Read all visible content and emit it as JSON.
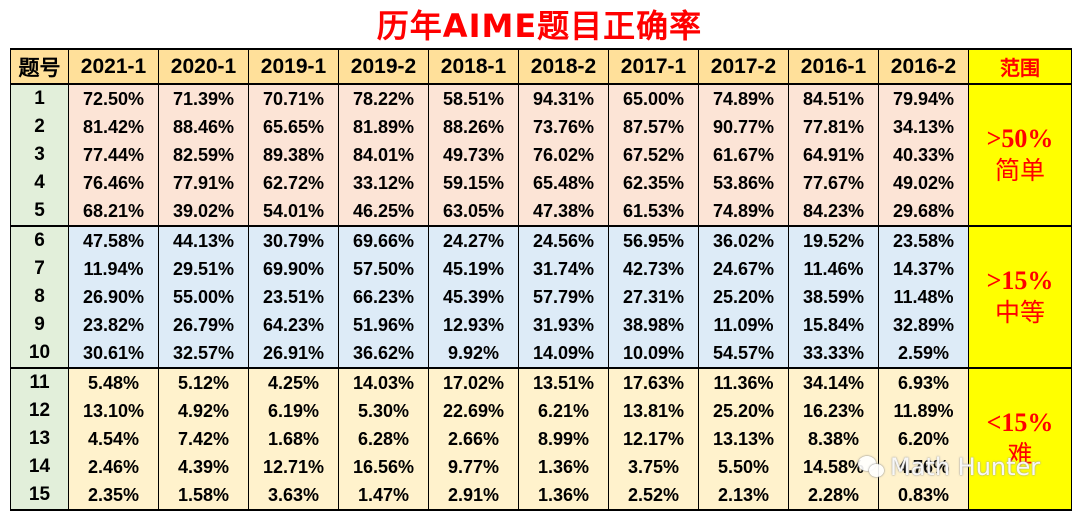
{
  "title": "历年AIME题目正确率",
  "table": {
    "headers": [
      "题号",
      "2021-1",
      "2020-1",
      "2019-1",
      "2019-2",
      "2018-1",
      "2018-2",
      "2017-1",
      "2017-2",
      "2016-1",
      "2016-2",
      "范围"
    ],
    "rows": [
      {
        "q": "1",
        "values": [
          "72.50%",
          "71.39%",
          "70.71%",
          "78.22%",
          "58.51%",
          "94.31%",
          "65.00%",
          "74.89%",
          "84.51%",
          "79.94%"
        ]
      },
      {
        "q": "2",
        "values": [
          "81.42%",
          "88.46%",
          "65.65%",
          "81.89%",
          "88.26%",
          "73.76%",
          "87.57%",
          "90.77%",
          "77.81%",
          "34.13%"
        ]
      },
      {
        "q": "3",
        "values": [
          "77.44%",
          "82.59%",
          "89.38%",
          "84.01%",
          "49.73%",
          "76.02%",
          "67.52%",
          "61.67%",
          "64.91%",
          "40.33%"
        ]
      },
      {
        "q": "4",
        "values": [
          "76.46%",
          "77.91%",
          "62.72%",
          "33.12%",
          "59.15%",
          "65.48%",
          "62.35%",
          "53.86%",
          "77.67%",
          "49.02%"
        ]
      },
      {
        "q": "5",
        "values": [
          "68.21%",
          "39.02%",
          "54.01%",
          "46.25%",
          "63.05%",
          "47.38%",
          "61.53%",
          "74.89%",
          "84.23%",
          "29.68%"
        ]
      },
      {
        "q": "6",
        "values": [
          "47.58%",
          "44.13%",
          "30.79%",
          "69.66%",
          "24.27%",
          "24.56%",
          "56.95%",
          "36.02%",
          "19.52%",
          "23.58%"
        ]
      },
      {
        "q": "7",
        "values": [
          "11.94%",
          "29.51%",
          "69.90%",
          "57.50%",
          "45.19%",
          "31.74%",
          "42.73%",
          "24.67%",
          "11.46%",
          "14.37%"
        ]
      },
      {
        "q": "8",
        "values": [
          "26.90%",
          "55.00%",
          "23.51%",
          "66.23%",
          "45.39%",
          "57.79%",
          "27.31%",
          "25.20%",
          "38.59%",
          "11.48%"
        ]
      },
      {
        "q": "9",
        "values": [
          "23.82%",
          "26.79%",
          "64.23%",
          "51.96%",
          "12.93%",
          "31.93%",
          "38.98%",
          "11.09%",
          "15.84%",
          "32.89%"
        ]
      },
      {
        "q": "10",
        "values": [
          "30.61%",
          "32.57%",
          "26.91%",
          "36.62%",
          "9.92%",
          "14.09%",
          "10.09%",
          "54.57%",
          "33.33%",
          "2.59%"
        ]
      },
      {
        "q": "11",
        "values": [
          "5.48%",
          "5.12%",
          "4.25%",
          "14.03%",
          "17.02%",
          "13.51%",
          "17.63%",
          "11.36%",
          "34.14%",
          "6.93%"
        ]
      },
      {
        "q": "12",
        "values": [
          "13.10%",
          "4.92%",
          "6.19%",
          "5.30%",
          "22.69%",
          "6.21%",
          "13.81%",
          "25.20%",
          "16.23%",
          "11.89%"
        ]
      },
      {
        "q": "13",
        "values": [
          "4.54%",
          "7.42%",
          "1.68%",
          "6.28%",
          "2.66%",
          "8.99%",
          "12.17%",
          "13.13%",
          "8.38%",
          "6.20%"
        ]
      },
      {
        "q": "14",
        "values": [
          "2.46%",
          "4.39%",
          "12.71%",
          "16.56%",
          "9.77%",
          "1.36%",
          "3.75%",
          "5.50%",
          "14.58%",
          "4.76%"
        ]
      },
      {
        "q": "15",
        "values": [
          "2.35%",
          "1.58%",
          "3.63%",
          "1.47%",
          "2.91%",
          "1.36%",
          "2.52%",
          "2.13%",
          "2.28%",
          "0.83%"
        ]
      }
    ],
    "ranges": [
      {
        "threshold": ">50%",
        "label": "简单"
      },
      {
        "threshold": ">15%",
        "label": "中等"
      },
      {
        "threshold": "<15%",
        "label": "难"
      }
    ]
  },
  "colors": {
    "title": "#ff0000",
    "header_bg": "#ffe09a",
    "question_col_bg": "#e2efda",
    "easy_bg": "#fce4d6",
    "medium_bg": "#ddebf7",
    "hard_bg": "#fff2cc",
    "range_bg": "#ffff00",
    "range_text": "#ff0000"
  },
  "watermark": {
    "icon": "wechat-icon",
    "text": "Math Hunter"
  }
}
